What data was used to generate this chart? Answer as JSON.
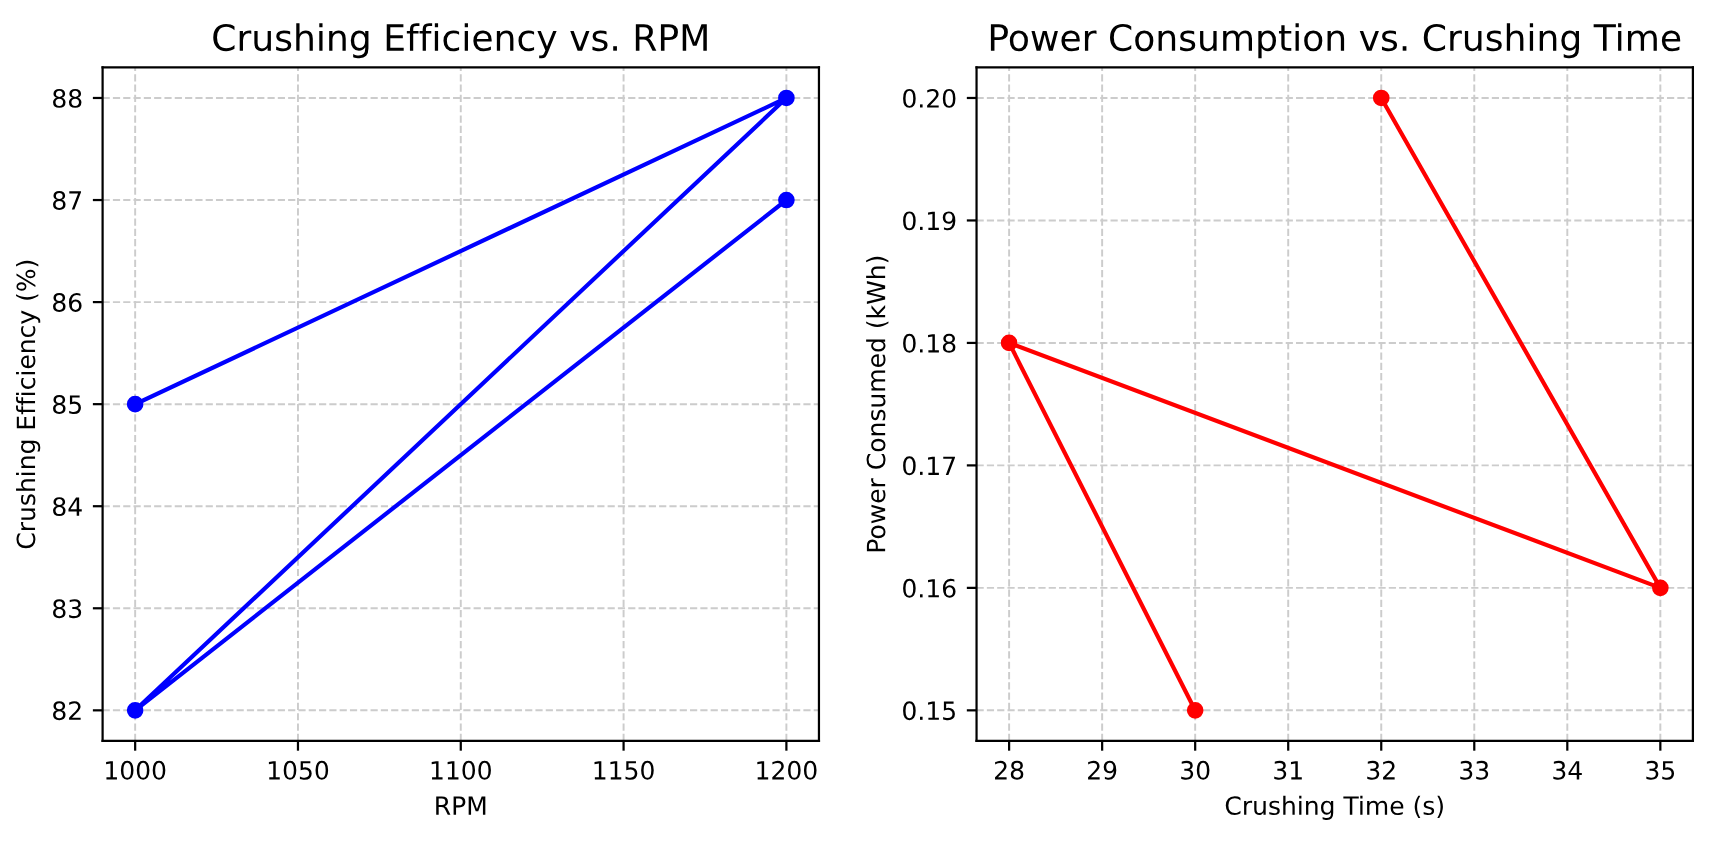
{
  "chart_data": [
    {
      "type": "line",
      "title": "Crushing Efficiency vs. RPM",
      "xlabel": "RPM",
      "ylabel": "Crushing Efficiency (%)",
      "x": [
        1000,
        1200,
        1000,
        1200
      ],
      "series": [
        {
          "color": "#0000ff",
          "values": [
            85,
            88,
            82,
            87
          ]
        }
      ],
      "xlim": [
        990,
        1210
      ],
      "xticks": [
        1000,
        1050,
        1100,
        1150,
        1200
      ],
      "ylim": [
        81.7,
        88.3
      ],
      "yticks": [
        82,
        83,
        84,
        85,
        86,
        87,
        88
      ],
      "grid": true,
      "marker": "circle",
      "line_style": "solid"
    },
    {
      "type": "line",
      "title": "Power Consumption vs. Crushing Time",
      "xlabel": "Crushing Time (s)",
      "ylabel": "Power Consumed (kWh)",
      "x": [
        32,
        35,
        28,
        30
      ],
      "series": [
        {
          "color": "#ff0000",
          "values": [
            0.2,
            0.16,
            0.18,
            0.15
          ]
        }
      ],
      "xlim": [
        27.65,
        35.35
      ],
      "xticks": [
        28,
        29,
        30,
        31,
        32,
        33,
        34,
        35
      ],
      "ylim": [
        0.1475,
        0.2025
      ],
      "yticks": [
        {
          "value": 0.15,
          "label": "0.15"
        },
        {
          "value": 0.16,
          "label": "0.16"
        },
        {
          "value": 0.17,
          "label": "0.17"
        },
        {
          "value": 0.18,
          "label": "0.18"
        },
        {
          "value": 0.19,
          "label": "0.19"
        },
        {
          "value": 0.2,
          "label": "0.20"
        }
      ],
      "grid": true,
      "marker": "circle",
      "line_style": "solid"
    }
  ]
}
